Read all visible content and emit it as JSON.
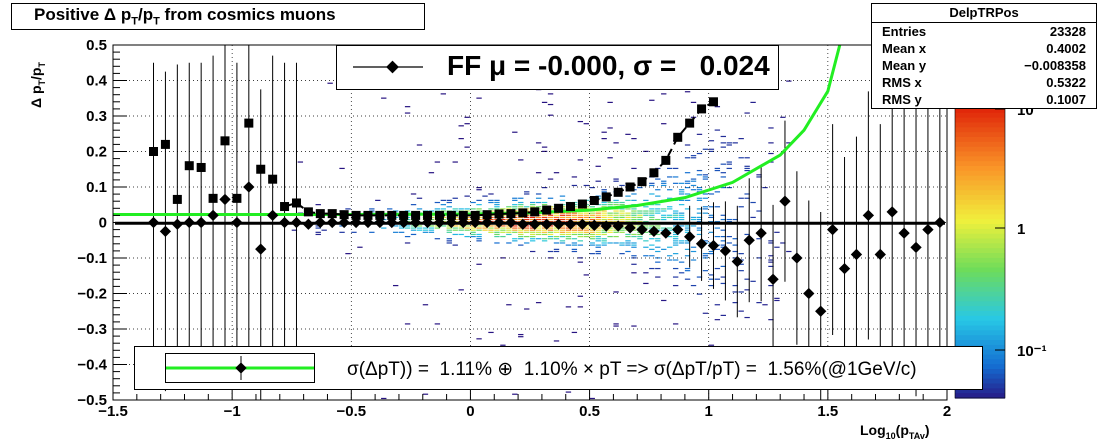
{
  "title": {
    "main": "Positive Δ p",
    "sub1": "T",
    "mid": "/p",
    "sub2": "T",
    "tail": " from cosmics muons"
  },
  "stats": {
    "name": "DelpTRPos",
    "rows": [
      {
        "label": "Entries",
        "value": "23328"
      },
      {
        "label": "Mean x",
        "value": "0.4002"
      },
      {
        "label": "Mean y",
        "value": "−0.008358"
      },
      {
        "label": "RMS x",
        "value": "0.5322"
      },
      {
        "label": "RMS y",
        "value": "0.1007"
      }
    ]
  },
  "fit_legend": {
    "label": "FF μ = -0.000, σ =   0.024"
  },
  "res_legend": {
    "label": "σ(ΔpT)) =  1.11% ⊕  1.10% × pT => σ(ΔpT/pT) =  1.56%(@1GeV/c)"
  },
  "axes": {
    "x_title_main": "Log",
    "x_title_sub": "10",
    "x_title_open": "(p",
    "x_title_sub2": "TAv",
    "x_title_close": ")",
    "y_title_main": "Δ p",
    "y_title_sub": "T",
    "y_title_mid": "/p",
    "y_title_sub2": "T",
    "x_ticks": [
      "−1.5",
      "−1",
      "−0.5",
      "0",
      "0.5",
      "1",
      "1.5",
      "2"
    ],
    "y_ticks": [
      "0.5",
      "0.4",
      "0.3",
      "0.2",
      "0.1",
      "0",
      "−0.1",
      "−0.2",
      "−0.3",
      "−0.4",
      "−0.5"
    ],
    "z_ticks": [
      "10",
      "1",
      "10⁻¹"
    ]
  },
  "chart_data": {
    "type": "heatmap",
    "x_range": [
      -1.5,
      2.0
    ],
    "y_range": [
      -0.5,
      0.5
    ],
    "grid": true,
    "colors": {
      "fit_curve": "#22ee22",
      "markers": "#000000"
    },
    "rms_points": {
      "x": [
        -1.33,
        -1.28,
        -1.23,
        -1.18,
        -1.13,
        -1.08,
        -1.03,
        -0.98,
        -0.93,
        -0.88,
        -0.83,
        -0.78,
        -0.73,
        -0.68,
        -0.63,
        -0.58,
        -0.53,
        -0.48,
        -0.43,
        -0.38,
        -0.33,
        -0.28,
        -0.23,
        -0.18,
        -0.13,
        -0.08,
        -0.03,
        0.02,
        0.07,
        0.12,
        0.17,
        0.22,
        0.27,
        0.32,
        0.37,
        0.42,
        0.47,
        0.52,
        0.57,
        0.62,
        0.67,
        0.72,
        0.77,
        0.82,
        0.87,
        0.92,
        0.97,
        1.02
      ],
      "y": [
        0.2,
        0.22,
        0.065,
        0.16,
        0.155,
        0.068,
        0.23,
        0.068,
        0.28,
        0.15,
        0.122,
        0.045,
        0.055,
        0.03,
        0.025,
        0.025,
        0.022,
        0.02,
        0.02,
        0.02,
        0.02,
        0.02,
        0.02,
        0.02,
        0.02,
        0.02,
        0.02,
        0.02,
        0.022,
        0.024,
        0.025,
        0.027,
        0.03,
        0.035,
        0.04,
        0.045,
        0.052,
        0.062,
        0.072,
        0.085,
        0.1,
        0.115,
        0.14,
        0.175,
        0.24,
        0.28,
        0.32,
        0.34
      ]
    },
    "mean_points": {
      "x": [
        -1.33,
        -1.28,
        -1.23,
        -1.18,
        -1.13,
        -1.08,
        -1.03,
        -0.98,
        -0.93,
        -0.88,
        -0.83,
        -0.78,
        -0.73,
        -0.68,
        -0.63,
        -0.58,
        -0.53,
        -0.48,
        -0.43,
        -0.38,
        -0.33,
        -0.28,
        -0.23,
        -0.18,
        -0.13,
        -0.08,
        -0.03,
        0.02,
        0.07,
        0.12,
        0.17,
        0.22,
        0.27,
        0.32,
        0.37,
        0.42,
        0.47,
        0.52,
        0.57,
        0.62,
        0.67,
        0.72,
        0.77,
        0.82,
        0.87,
        0.92,
        0.97,
        1.02,
        1.07,
        1.12,
        1.17,
        1.22,
        1.27,
        1.32,
        1.37,
        1.42,
        1.47,
        1.52,
        1.57,
        1.62,
        1.67,
        1.72,
        1.77,
        1.82,
        1.87,
        1.92,
        1.97
      ],
      "y": [
        0.0,
        -0.025,
        -0.005,
        0.0,
        0.0,
        0.02,
        0.065,
        0.0,
        0.1,
        -0.075,
        0.02,
        0.0,
        0.0,
        -0.005,
        0.0,
        0.0,
        0.0,
        0.0,
        0.0,
        0.0,
        0.0,
        0.0,
        0.0,
        0.0,
        0.0,
        0.0,
        0.0,
        0.0,
        0.0,
        0.0,
        0.0,
        -0.005,
        -0.005,
        -0.005,
        -0.005,
        -0.005,
        -0.005,
        -0.008,
        -0.01,
        -0.01,
        -0.015,
        -0.02,
        -0.025,
        -0.03,
        -0.02,
        -0.04,
        -0.06,
        -0.065,
        -0.08,
        -0.11,
        -0.05,
        -0.03,
        -0.16,
        0.06,
        -0.1,
        -0.2,
        -0.25,
        -0.02,
        -0.13,
        -0.09,
        0.02,
        -0.09,
        0.03,
        -0.03,
        -0.07,
        -0.02,
        0.0
      ]
    },
    "rms_fit": {
      "x": [
        -1.5,
        -1.0,
        -0.5,
        0.0,
        0.25,
        0.5,
        0.7,
        0.9,
        1.1,
        1.3,
        1.4,
        1.5,
        1.55
      ],
      "y": [
        0.0225,
        0.0225,
        0.0226,
        0.024,
        0.027,
        0.035,
        0.048,
        0.07,
        0.113,
        0.19,
        0.26,
        0.37,
        0.5
      ]
    },
    "fit_legend": "FF μ = -0.000, σ =   0.024",
    "resolution_legend": "σ(ΔpT)) =  1.11% ⊕  1.10% × pT => σ(ΔpT/pT) =  1.56%(@1GeV/c)"
  }
}
